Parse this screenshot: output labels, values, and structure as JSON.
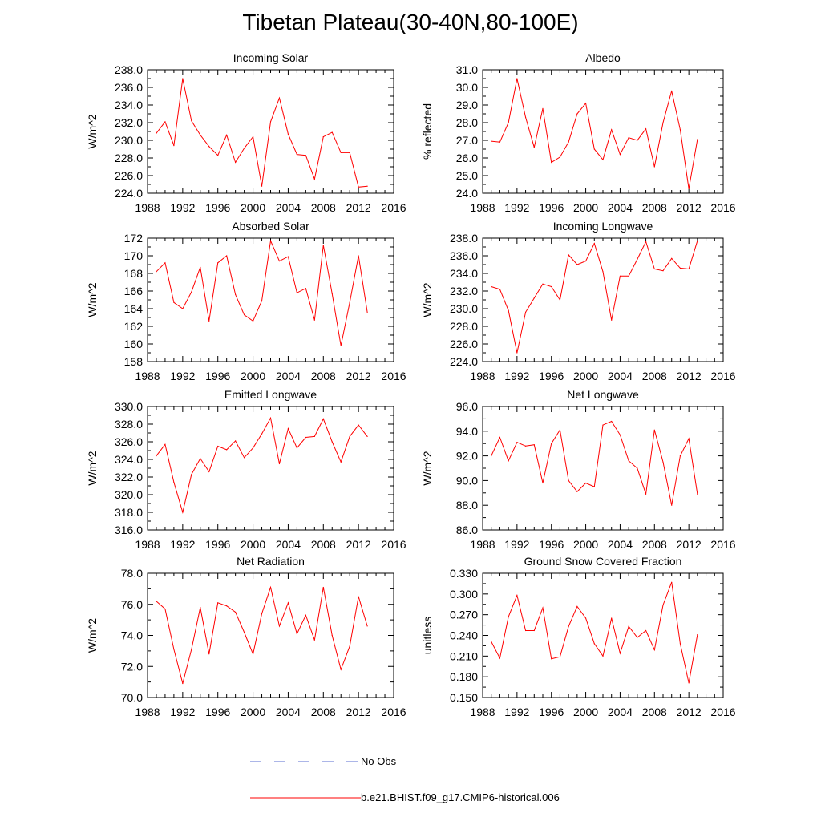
{
  "title": "Tibetan Plateau(30-40N,80-100E)",
  "legend": [
    {
      "label": "No Obs",
      "color": "#5a6ed0",
      "dash": true
    },
    {
      "label": "b.e21.BHIST.f09_g17.CMIP6-historical.006",
      "color": "#ff0000",
      "dash": false
    }
  ],
  "chart_data": [
    {
      "type": "line",
      "title": "Incoming Solar",
      "ylabel": "W/m^2",
      "xlim": [
        1988,
        2016
      ],
      "ylim": [
        224,
        238
      ],
      "xticks": [
        "1988",
        "1992",
        "1996",
        "2000",
        "2004",
        "2008",
        "2012",
        "2016"
      ],
      "yticks": [
        "224.0",
        "226.0",
        "228.0",
        "230.0",
        "232.0",
        "234.0",
        "236.0",
        "238.0"
      ],
      "x": [
        1989,
        1990,
        1991,
        1992,
        1993,
        1994,
        1995,
        1996,
        1997,
        1998,
        1999,
        2000,
        2001,
        2002,
        2003,
        2004,
        2005,
        2006,
        2007,
        2008,
        2009,
        2010,
        2011,
        2012,
        2013
      ],
      "series": [
        {
          "color": "#ff0000",
          "values": [
            230.8,
            232.1,
            229.4,
            237.0,
            232.2,
            230.6,
            229.3,
            228.3,
            230.6,
            227.5,
            229.1,
            230.4,
            224.8,
            232.1,
            234.8,
            230.7,
            228.4,
            228.3,
            225.6,
            230.4,
            230.9,
            228.6,
            228.6,
            224.7,
            224.8
          ]
        }
      ]
    },
    {
      "type": "line",
      "title": "Albedo",
      "ylabel": "% reflected",
      "xlim": [
        1988,
        2016
      ],
      "ylim": [
        24,
        31
      ],
      "xticks": [
        "1988",
        "1992",
        "1996",
        "2000",
        "2004",
        "2008",
        "2012",
        "2016"
      ],
      "yticks": [
        "24.0",
        "25.0",
        "26.0",
        "27.0",
        "28.0",
        "29.0",
        "30.0",
        "31.0"
      ],
      "x": [
        1989,
        1990,
        1991,
        1992,
        1993,
        1994,
        1995,
        1996,
        1997,
        1998,
        1999,
        2000,
        2001,
        2002,
        2003,
        2004,
        2005,
        2006,
        2007,
        2008,
        2009,
        2010,
        2011,
        2012,
        2013
      ],
      "series": [
        {
          "color": "#ff0000",
          "values": [
            26.95,
            26.9,
            28.0,
            30.5,
            28.3,
            26.6,
            28.8,
            25.75,
            26.05,
            26.9,
            28.5,
            29.1,
            26.5,
            25.9,
            27.6,
            26.2,
            27.15,
            27.0,
            27.65,
            25.5,
            28.0,
            29.8,
            27.6,
            24.25,
            27.05
          ]
        }
      ]
    },
    {
      "type": "line",
      "title": "Absorbed Solar",
      "ylabel": "W/m^2",
      "xlim": [
        1988,
        2016
      ],
      "ylim": [
        158,
        172
      ],
      "xticks": [
        "1988",
        "1992",
        "1996",
        "2000",
        "2004",
        "2008",
        "2012",
        "2016"
      ],
      "yticks": [
        "158",
        "160",
        "162",
        "164",
        "166",
        "168",
        "170",
        "172"
      ],
      "x": [
        1989,
        1990,
        1991,
        1992,
        1993,
        1994,
        1995,
        1996,
        1997,
        1998,
        1999,
        2000,
        2001,
        2002,
        2003,
        2004,
        2005,
        2006,
        2007,
        2008,
        2009,
        2010,
        2011,
        2012,
        2013
      ],
      "series": [
        {
          "color": "#ff0000",
          "values": [
            168.2,
            169.2,
            164.7,
            164.0,
            165.9,
            168.7,
            162.6,
            169.2,
            170.0,
            165.6,
            163.3,
            162.6,
            164.9,
            171.7,
            169.4,
            169.9,
            165.8,
            166.3,
            162.7,
            171.2,
            165.7,
            159.8,
            164.7,
            170.0,
            163.6
          ]
        }
      ]
    },
    {
      "type": "line",
      "title": "Incoming Longwave",
      "ylabel": "W/m^2",
      "xlim": [
        1988,
        2016
      ],
      "ylim": [
        224,
        238
      ],
      "xticks": [
        "1988",
        "1992",
        "1996",
        "2000",
        "2004",
        "2008",
        "2012",
        "2016"
      ],
      "yticks": [
        "224.0",
        "226.0",
        "228.0",
        "230.0",
        "232.0",
        "234.0",
        "236.0",
        "238.0"
      ],
      "x": [
        1989,
        1990,
        1991,
        1992,
        1993,
        1994,
        1995,
        1996,
        1997,
        1998,
        1999,
        2000,
        2001,
        2002,
        2003,
        2004,
        2005,
        2006,
        2007,
        2008,
        2009,
        2010,
        2011,
        2012,
        2013
      ],
      "series": [
        {
          "color": "#ff0000",
          "values": [
            232.5,
            232.2,
            229.8,
            225.0,
            229.6,
            231.2,
            232.8,
            232.5,
            231.0,
            236.1,
            235.0,
            235.4,
            237.4,
            234.2,
            228.7,
            233.7,
            233.7,
            235.6,
            237.6,
            234.5,
            234.3,
            235.7,
            234.6,
            234.5,
            237.7
          ]
        }
      ]
    },
    {
      "type": "line",
      "title": "Emitted Longwave",
      "ylabel": "W/m^2",
      "xlim": [
        1988,
        2016
      ],
      "ylim": [
        316,
        330
      ],
      "xticks": [
        "1988",
        "1992",
        "1996",
        "2000",
        "2004",
        "2008",
        "2012",
        "2016"
      ],
      "yticks": [
        "316.0",
        "318.0",
        "320.0",
        "322.0",
        "324.0",
        "326.0",
        "328.0",
        "330.0"
      ],
      "x": [
        1989,
        1990,
        1991,
        1992,
        1993,
        1994,
        1995,
        1996,
        1997,
        1998,
        1999,
        2000,
        2001,
        2002,
        2003,
        2004,
        2005,
        2006,
        2007,
        2008,
        2009,
        2010,
        2011,
        2012,
        2013
      ],
      "series": [
        {
          "color": "#ff0000",
          "values": [
            324.4,
            325.7,
            321.4,
            318.0,
            322.3,
            324.1,
            322.6,
            325.5,
            325.1,
            326.1,
            324.2,
            325.3,
            326.9,
            328.7,
            323.5,
            327.5,
            325.3,
            326.5,
            326.6,
            328.6,
            326.0,
            323.7,
            326.6,
            327.9,
            326.6
          ]
        }
      ]
    },
    {
      "type": "line",
      "title": "Net Longwave",
      "ylabel": "W/m^2",
      "xlim": [
        1988,
        2016
      ],
      "ylim": [
        86,
        96
      ],
      "xticks": [
        "1988",
        "1992",
        "1996",
        "2000",
        "2004",
        "2008",
        "2012",
        "2016"
      ],
      "yticks": [
        "86.0",
        "88.0",
        "90.0",
        "92.0",
        "94.0",
        "96.0"
      ],
      "x": [
        1989,
        1990,
        1991,
        1992,
        1993,
        1994,
        1995,
        1996,
        1997,
        1998,
        1999,
        2000,
        2001,
        2002,
        2003,
        2004,
        2005,
        2006,
        2007,
        2008,
        2009,
        2010,
        2011,
        2012,
        2013
      ],
      "series": [
        {
          "color": "#ff0000",
          "values": [
            92.0,
            93.5,
            91.6,
            93.1,
            92.8,
            92.9,
            89.8,
            93.0,
            94.1,
            90.0,
            89.1,
            89.8,
            89.5,
            94.5,
            94.8,
            93.7,
            91.6,
            91.0,
            88.9,
            94.1,
            91.5,
            88.0,
            92.0,
            93.4,
            88.9
          ]
        }
      ]
    },
    {
      "type": "line",
      "title": "Net Radiation",
      "ylabel": "W/m^2",
      "xlim": [
        1988,
        2016
      ],
      "ylim": [
        70,
        78
      ],
      "xticks": [
        "1988",
        "1992",
        "1996",
        "2000",
        "2004",
        "2008",
        "2012",
        "2016"
      ],
      "yticks": [
        "70.0",
        "72.0",
        "74.0",
        "76.0",
        "78.0"
      ],
      "x": [
        1989,
        1990,
        1991,
        1992,
        1993,
        1994,
        1995,
        1996,
        1997,
        1998,
        1999,
        2000,
        2001,
        2002,
        2003,
        2004,
        2005,
        2006,
        2007,
        2008,
        2009,
        2010,
        2011,
        2012,
        2013
      ],
      "series": [
        {
          "color": "#ff0000",
          "values": [
            76.2,
            75.7,
            73.1,
            70.9,
            73.1,
            75.8,
            72.8,
            76.1,
            75.9,
            75.5,
            74.2,
            72.8,
            75.4,
            77.1,
            74.6,
            76.1,
            74.1,
            75.3,
            73.7,
            77.1,
            74.0,
            71.8,
            73.3,
            76.5,
            74.6
          ]
        }
      ]
    },
    {
      "type": "line",
      "title": "Ground Snow Covered Fraction",
      "ylabel": "unitless",
      "xlim": [
        1988,
        2016
      ],
      "ylim": [
        0.15,
        0.33
      ],
      "xticks": [
        "1988",
        "1992",
        "1996",
        "2000",
        "2004",
        "2008",
        "2012",
        "2016"
      ],
      "yticks": [
        "0.150",
        "0.180",
        "0.210",
        "0.240",
        "0.270",
        "0.300",
        "0.330"
      ],
      "x": [
        1989,
        1990,
        1991,
        1992,
        1993,
        1994,
        1995,
        1996,
        1997,
        1998,
        1999,
        2000,
        2001,
        2002,
        2003,
        2004,
        2005,
        2006,
        2007,
        2008,
        2009,
        2010,
        2011,
        2012,
        2013
      ],
      "series": [
        {
          "color": "#ff0000",
          "values": [
            0.231,
            0.207,
            0.267,
            0.298,
            0.247,
            0.247,
            0.28,
            0.206,
            0.209,
            0.253,
            0.282,
            0.265,
            0.228,
            0.21,
            0.265,
            0.214,
            0.253,
            0.237,
            0.247,
            0.219,
            0.284,
            0.317,
            0.228,
            0.171,
            0.241
          ]
        }
      ]
    }
  ]
}
